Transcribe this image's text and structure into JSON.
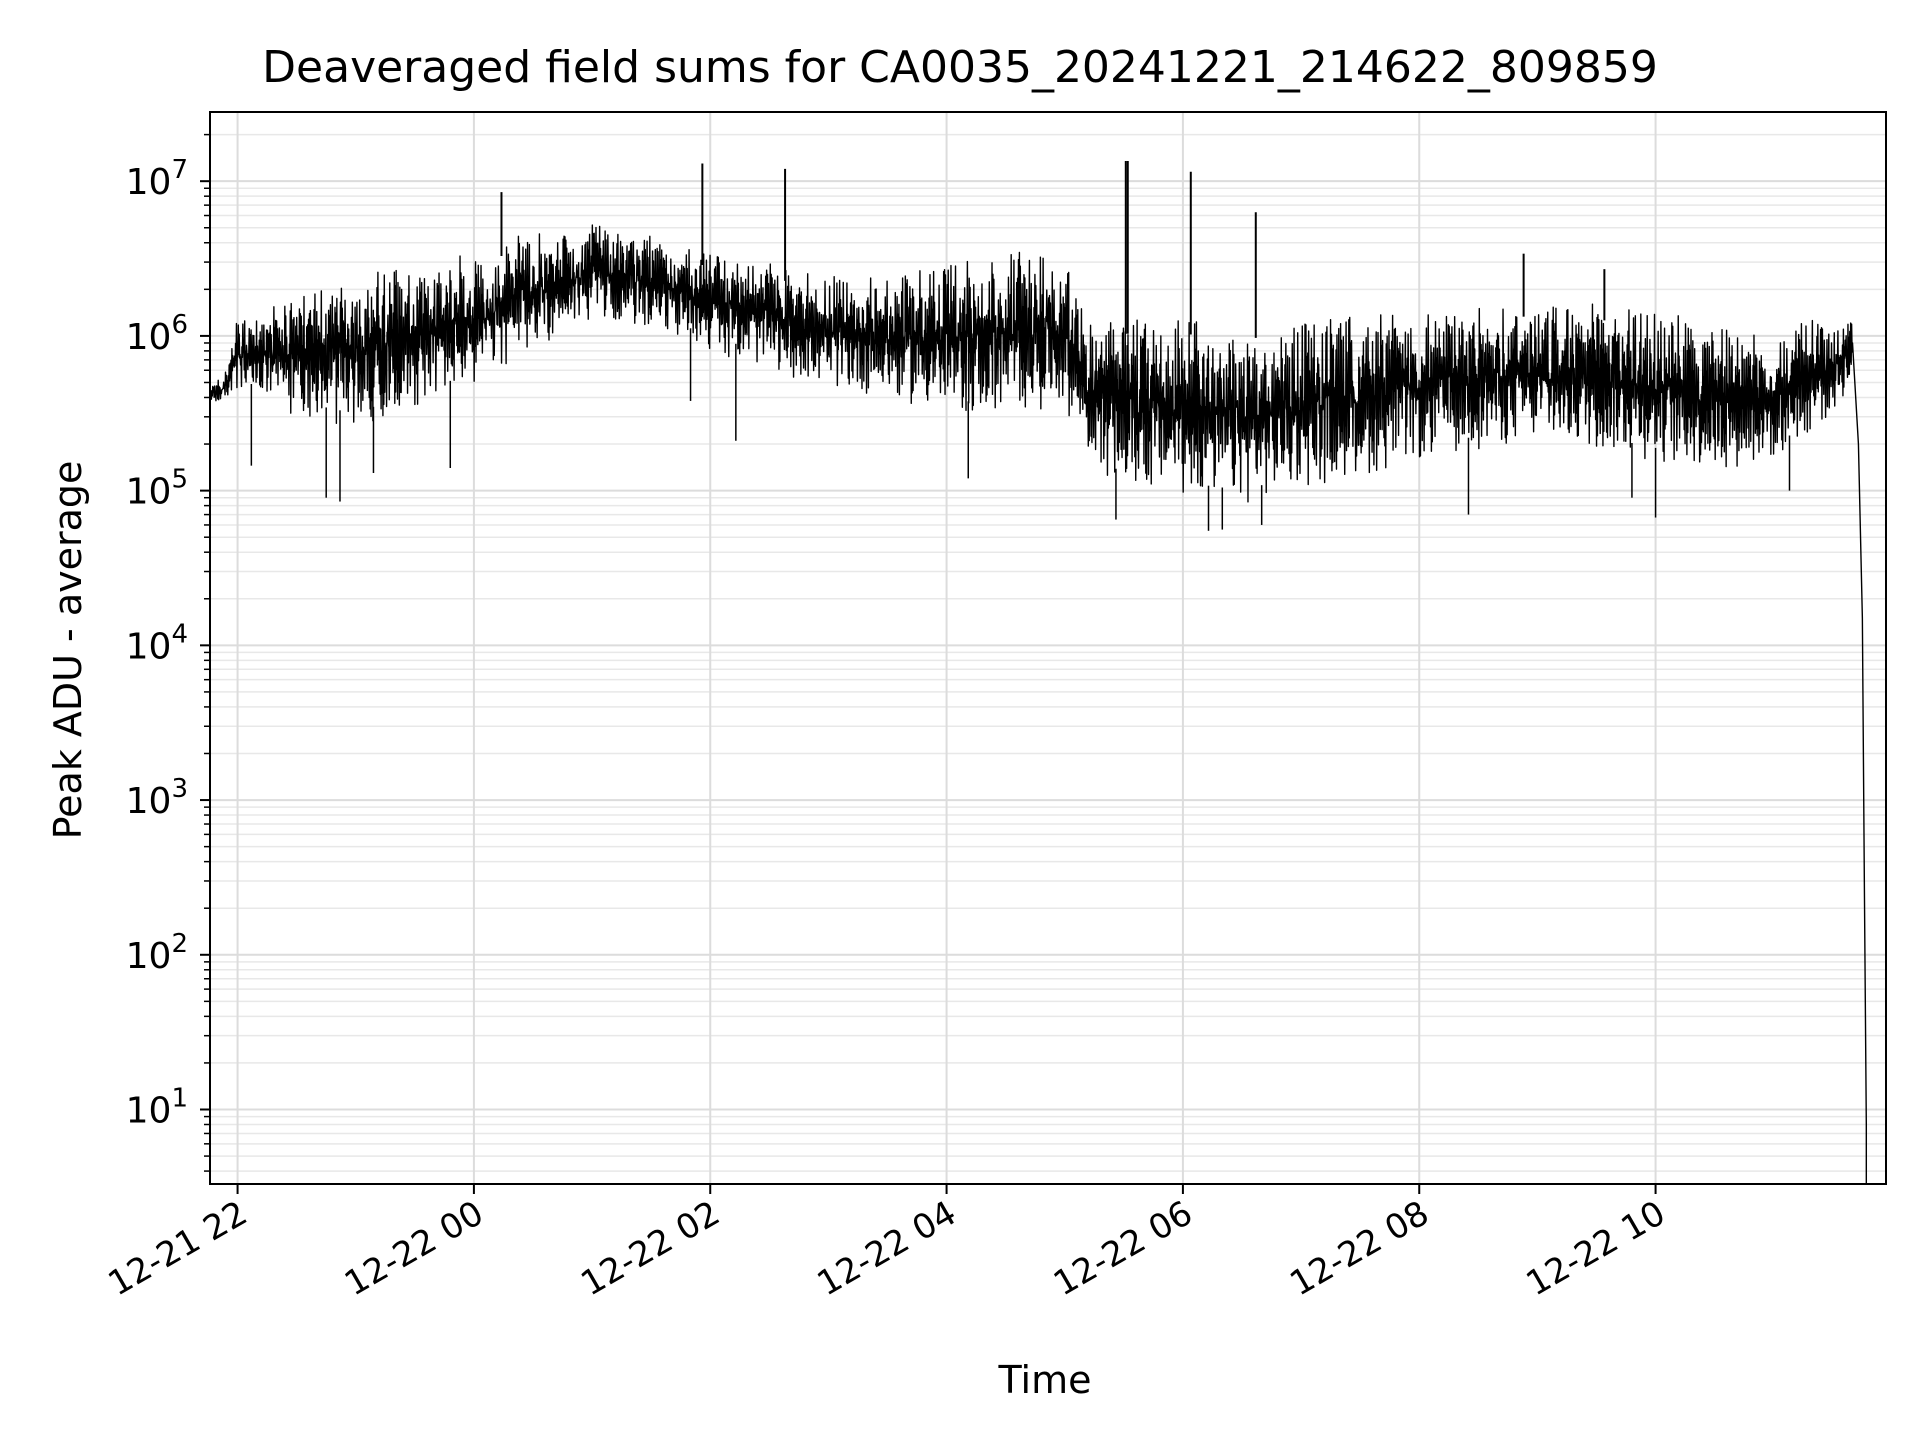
{
  "chart_data": {
    "type": "line",
    "title": "Deaveraged field sums for CA0035_20241221_214622_809859",
    "xlabel": "Time",
    "ylabel": "Peak ADU - average",
    "yscale": "log",
    "ylim": [
      3.3,
      28000000
    ],
    "xlim": [
      "2024-12-21 21:46",
      "2024-12-22 11:57"
    ],
    "grid": true,
    "line_color": "#000000",
    "x_ticks": [
      {
        "value": "2024-12-21 22:00",
        "label": "12-21 22"
      },
      {
        "value": "2024-12-22 00:00",
        "label": "12-22 00"
      },
      {
        "value": "2024-12-22 02:00",
        "label": "12-22 02"
      },
      {
        "value": "2024-12-22 04:00",
        "label": "12-22 04"
      },
      {
        "value": "2024-12-22 06:00",
        "label": "12-22 06"
      },
      {
        "value": "2024-12-22 08:00",
        "label": "12-22 08"
      },
      {
        "value": "2024-12-22 10:00",
        "label": "12-22 10"
      }
    ],
    "y_ticks": [
      {
        "value": 10,
        "base": "10",
        "exp": "1"
      },
      {
        "value": 100,
        "base": "10",
        "exp": "2"
      },
      {
        "value": 1000,
        "base": "10",
        "exp": "3"
      },
      {
        "value": 10000,
        "base": "10",
        "exp": "4"
      },
      {
        "value": 100000,
        "base": "10",
        "exp": "5"
      },
      {
        "value": 1000000,
        "base": "10",
        "exp": "6"
      },
      {
        "value": 10000000,
        "base": "10",
        "exp": "7"
      }
    ],
    "envelope": [
      {
        "x": "2024-12-21 21:46",
        "low": 350000,
        "high": 500000
      },
      {
        "x": "2024-12-21 21:53",
        "low": 380000,
        "high": 550000
      },
      {
        "x": "2024-12-21 22:00",
        "low": 420000,
        "high": 1300000
      },
      {
        "x": "2024-12-21 22:30",
        "low": 300000,
        "high": 1900000
      },
      {
        "x": "2024-12-21 23:00",
        "low": 250000,
        "high": 2400000
      },
      {
        "x": "2024-12-21 23:30",
        "low": 350000,
        "high": 3000000
      },
      {
        "x": "2024-12-22 00:00",
        "low": 450000,
        "high": 3500000
      },
      {
        "x": "2024-12-22 00:30",
        "low": 800000,
        "high": 5000000
      },
      {
        "x": "2024-12-22 01:00",
        "low": 1300000,
        "high": 5500000
      },
      {
        "x": "2024-12-22 01:30",
        "low": 1100000,
        "high": 4500000
      },
      {
        "x": "2024-12-22 02:00",
        "low": 800000,
        "high": 3500000
      },
      {
        "x": "2024-12-22 02:30",
        "low": 600000,
        "high": 3000000
      },
      {
        "x": "2024-12-22 03:00",
        "low": 450000,
        "high": 2500000
      },
      {
        "x": "2024-12-22 03:30",
        "low": 400000,
        "high": 2500000
      },
      {
        "x": "2024-12-22 04:00",
        "low": 300000,
        "high": 3000000
      },
      {
        "x": "2024-12-22 04:30",
        "low": 300000,
        "high": 3500000
      },
      {
        "x": "2024-12-22 05:00",
        "low": 350000,
        "high": 3800000
      },
      {
        "x": "2024-12-22 05:13",
        "low": 150000,
        "high": 1200000
      },
      {
        "x": "2024-12-22 05:30",
        "low": 100000,
        "high": 1300000
      },
      {
        "x": "2024-12-22 06:00",
        "low": 90000,
        "high": 1300000
      },
      {
        "x": "2024-12-22 06:30",
        "low": 80000,
        "high": 1200000
      },
      {
        "x": "2024-12-22 07:00",
        "low": 100000,
        "high": 1300000
      },
      {
        "x": "2024-12-22 07:30",
        "low": 120000,
        "high": 1400000
      },
      {
        "x": "2024-12-22 08:00",
        "low": 150000,
        "high": 1500000
      },
      {
        "x": "2024-12-22 08:30",
        "low": 180000,
        "high": 1600000
      },
      {
        "x": "2024-12-22 09:00",
        "low": 200000,
        "high": 1700000
      },
      {
        "x": "2024-12-22 09:30",
        "low": 180000,
        "high": 1600000
      },
      {
        "x": "2024-12-22 10:00",
        "low": 150000,
        "high": 1500000
      },
      {
        "x": "2024-12-22 10:30",
        "low": 130000,
        "high": 1200000
      },
      {
        "x": "2024-12-22 11:00",
        "low": 150000,
        "high": 1100000
      },
      {
        "x": "2024-12-22 11:30",
        "low": 300000,
        "high": 1500000
      },
      {
        "x": "2024-12-22 11:40",
        "low": 500000,
        "high": 1300000
      }
    ],
    "tail": [
      {
        "x": "2024-12-22 11:40",
        "y": 900000
      },
      {
        "x": "2024-12-22 11:43",
        "y": 200000
      },
      {
        "x": "2024-12-22 11:45",
        "y": 15000
      },
      {
        "x": "2024-12-22 11:46",
        "y": 300
      },
      {
        "x": "2024-12-22 11:47",
        "y": 8
      },
      {
        "x": "2024-12-22 11:47",
        "y": 3.3
      }
    ],
    "dips": [
      {
        "x": "2024-12-21 22:07",
        "y": 145000
      },
      {
        "x": "2024-12-21 22:45",
        "y": 90000
      },
      {
        "x": "2024-12-21 22:52",
        "y": 85000
      },
      {
        "x": "2024-12-21 23:09",
        "y": 130000
      },
      {
        "x": "2024-12-21 23:48",
        "y": 140000
      },
      {
        "x": "2024-12-22 01:50",
        "y": 380000
      },
      {
        "x": "2024-12-22 02:13",
        "y": 210000
      },
      {
        "x": "2024-12-22 04:11",
        "y": 120000
      },
      {
        "x": "2024-12-22 05:26",
        "y": 65000
      },
      {
        "x": "2024-12-22 06:13",
        "y": 55000
      },
      {
        "x": "2024-12-22 06:20",
        "y": 56000
      },
      {
        "x": "2024-12-22 06:40",
        "y": 60000
      },
      {
        "x": "2024-12-22 08:25",
        "y": 70000
      },
      {
        "x": "2024-12-22 09:48",
        "y": 90000
      },
      {
        "x": "2024-12-22 10:00",
        "y": 67000
      },
      {
        "x": "2024-12-22 11:08",
        "y": 100000
      }
    ],
    "spikes": [
      {
        "x": "2024-12-22 00:14",
        "y": 8500000
      },
      {
        "x": "2024-12-22 01:56",
        "y": 13000000
      },
      {
        "x": "2024-12-22 02:38",
        "y": 12000000
      },
      {
        "x": "2024-12-22 05:31",
        "y": 13500000
      },
      {
        "x": "2024-12-22 05:32",
        "y": 13500000
      },
      {
        "x": "2024-12-22 06:04",
        "y": 11500000
      },
      {
        "x": "2024-12-22 06:37",
        "y": 6300000
      },
      {
        "x": "2024-12-22 08:53",
        "y": 3400000
      },
      {
        "x": "2024-12-22 09:34",
        "y": 2700000
      }
    ]
  }
}
